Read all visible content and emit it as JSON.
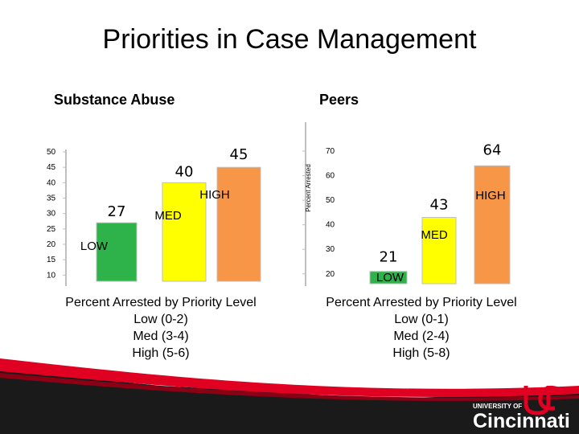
{
  "slide": {
    "title": "Priorities in Case Management",
    "left_heading": "Substance Abuse",
    "right_heading": "Peers",
    "left_caption": [
      "Percent Arrested by Priority Level",
      "Low (0-2)",
      "Med (3-4)",
      "High (5-6)"
    ],
    "right_caption": [
      "Percent Arrested by Priority Level",
      "Low (0-1)",
      "Med (2-4)",
      "High (5-8)"
    ]
  },
  "logo": {
    "line1": "UNIVERSITY OF",
    "line2": "Cincinnati"
  },
  "colors": {
    "low": "#2db34a",
    "med": "#ffff00",
    "high": "#f79646",
    "brand_red": "#e00122",
    "footer_dark": "#1a1a1a"
  },
  "chart_data": [
    {
      "type": "bar",
      "categories": [
        "LOW",
        "MED",
        "HIGH"
      ],
      "values": [
        27,
        40,
        45
      ],
      "data_labels": [
        "27",
        "40",
        "45"
      ],
      "yticks": [
        10,
        15,
        20,
        25,
        30,
        35,
        40,
        45,
        50
      ],
      "ylim": [
        8,
        50
      ],
      "ylabel": ""
    },
    {
      "type": "bar",
      "categories": [
        "LOW",
        "MED",
        "HIGH"
      ],
      "values": [
        21,
        43,
        64
      ],
      "data_labels": [
        "21",
        "43",
        "64"
      ],
      "yticks": [
        20,
        30,
        40,
        50,
        60,
        70
      ],
      "ylim": [
        16,
        70
      ],
      "ylabel": "Percent Arrested"
    }
  ]
}
